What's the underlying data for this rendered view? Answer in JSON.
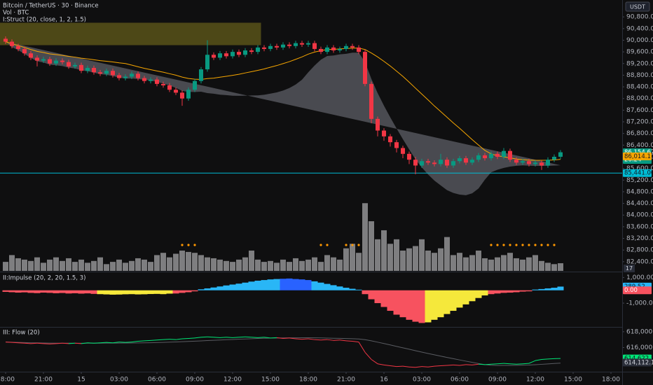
{
  "chart_data": [
    {
      "type": "candlestick",
      "title": "Bitcoin / TetherUS · 30 · Binance",
      "indicator": "I:Struct (20, close, 1, 2, 1.5)",
      "currency": "USDT",
      "up_color": "#089981",
      "down_color": "#f23645",
      "band_color": "#5d5f66",
      "ma_color": "#f7a600",
      "ohlc": [
        [
          90050,
          90130,
          89870,
          89950
        ],
        [
          89950,
          90030,
          89720,
          89800
        ],
        [
          89800,
          89880,
          89620,
          89700
        ],
        [
          89700,
          89780,
          89470,
          89550
        ],
        [
          89550,
          89630,
          89320,
          89400
        ],
        [
          89400,
          89480,
          89100,
          89300
        ],
        [
          89300,
          89430,
          89220,
          89350
        ],
        [
          89350,
          89430,
          89120,
          89200
        ],
        [
          89200,
          89380,
          89120,
          89300
        ],
        [
          89300,
          89380,
          89170,
          89250
        ],
        [
          89250,
          89330,
          89020,
          89100
        ],
        [
          89100,
          89230,
          89020,
          89150
        ],
        [
          89150,
          89230,
          88870,
          88950
        ],
        [
          88950,
          89130,
          88870,
          89050
        ],
        [
          89050,
          89130,
          88820,
          88900
        ],
        [
          88900,
          88980,
          88770,
          88850
        ],
        [
          88850,
          89030,
          88770,
          88950
        ],
        [
          88950,
          89030,
          88720,
          88800
        ],
        [
          88800,
          88880,
          88620,
          88700
        ],
        [
          88700,
          88830,
          88620,
          88750
        ],
        [
          88750,
          88930,
          88670,
          88850
        ],
        [
          88850,
          88930,
          88620,
          88700
        ],
        [
          88700,
          88780,
          88520,
          88600
        ],
        [
          88600,
          88730,
          88520,
          88650
        ],
        [
          88650,
          88730,
          88420,
          88500
        ],
        [
          88500,
          88580,
          88370,
          88450
        ],
        [
          88450,
          88530,
          88220,
          88300
        ],
        [
          88300,
          88380,
          88120,
          88200
        ],
        [
          88200,
          88280,
          87750,
          88000
        ],
        [
          88000,
          88380,
          87920,
          88300
        ],
        [
          88300,
          88680,
          88220,
          88600
        ],
        [
          88600,
          89080,
          88520,
          89000
        ],
        [
          89000,
          90000,
          88920,
          89500
        ],
        [
          89500,
          89580,
          89320,
          89400
        ],
        [
          89400,
          89630,
          89320,
          89550
        ],
        [
          89550,
          89630,
          89370,
          89450
        ],
        [
          89450,
          89680,
          89370,
          89600
        ],
        [
          89600,
          89680,
          89420,
          89500
        ],
        [
          89500,
          89730,
          89420,
          89650
        ],
        [
          89650,
          89730,
          89520,
          89600
        ],
        [
          89600,
          89830,
          89520,
          89750
        ],
        [
          89750,
          89830,
          89620,
          89700
        ],
        [
          89700,
          89880,
          89620,
          89800
        ],
        [
          89800,
          89880,
          89670,
          89750
        ],
        [
          89750,
          89930,
          89670,
          89850
        ],
        [
          89850,
          89930,
          89720,
          89800
        ],
        [
          89800,
          89980,
          89720,
          89900
        ],
        [
          89900,
          89980,
          89770,
          89850
        ],
        [
          89850,
          89980,
          89770,
          89900
        ],
        [
          89900,
          89980,
          89620,
          89700
        ],
        [
          89700,
          89780,
          89520,
          89600
        ],
        [
          89600,
          89830,
          89520,
          89750
        ],
        [
          89750,
          89830,
          89570,
          89650
        ],
        [
          89650,
          89780,
          89570,
          89700
        ],
        [
          89700,
          89880,
          89620,
          89800
        ],
        [
          89800,
          89880,
          89670,
          89750
        ],
        [
          89750,
          89830,
          89520,
          89600
        ],
        [
          89600,
          89680,
          88420,
          88500
        ],
        [
          88500,
          88580,
          87150,
          87300
        ],
        [
          87300,
          87380,
          86700,
          86900
        ],
        [
          86900,
          86980,
          86550,
          86700
        ],
        [
          86700,
          86780,
          86350,
          86500
        ],
        [
          86500,
          86580,
          86150,
          86300
        ],
        [
          86300,
          86380,
          85950,
          86100
        ],
        [
          86100,
          86180,
          85750,
          85900
        ],
        [
          85900,
          86000,
          85400,
          85700
        ],
        [
          85700,
          85930,
          85620,
          85850
        ],
        [
          85850,
          85930,
          85720,
          85800
        ],
        [
          85800,
          85880,
          85670,
          85750
        ],
        [
          85750,
          86100,
          85670,
          85900
        ],
        [
          85900,
          85980,
          85620,
          85700
        ],
        [
          85700,
          85930,
          85620,
          85850
        ],
        [
          85850,
          86030,
          85770,
          85950
        ],
        [
          85950,
          86030,
          85720,
          85800
        ],
        [
          85800,
          85980,
          85720,
          85900
        ],
        [
          85900,
          86130,
          85820,
          86050
        ],
        [
          86050,
          86130,
          85870,
          85950
        ],
        [
          85950,
          86180,
          85870,
          86100
        ],
        [
          86100,
          86180,
          85920,
          86000
        ],
        [
          86000,
          86300,
          85920,
          86200
        ],
        [
          86200,
          86280,
          85820,
          85900
        ],
        [
          85900,
          85980,
          85720,
          85800
        ],
        [
          85800,
          85930,
          85720,
          85850
        ],
        [
          85850,
          85930,
          85670,
          85750
        ],
        [
          85750,
          85880,
          85670,
          85800
        ],
        [
          85800,
          85880,
          85550,
          85700
        ],
        [
          85700,
          85980,
          85620,
          85900
        ],
        [
          85900,
          86080,
          85820,
          86000
        ],
        [
          86000,
          86230,
          85920,
          86154.67
        ]
      ],
      "ylim": [
        82060,
        91380
      ],
      "yticks": [
        {
          "value": 90800,
          "label": "90,800.00"
        },
        {
          "value": 90400,
          "label": "90,400.00"
        },
        {
          "value": 90000,
          "label": "90,000.00"
        },
        {
          "value": 89600,
          "label": "89,600.00"
        },
        {
          "value": 89200,
          "label": "89,200.00"
        },
        {
          "value": 88800,
          "label": "88,800.00"
        },
        {
          "value": 88400,
          "label": "88,400.00"
        },
        {
          "value": 88000,
          "label": "88,000.00"
        },
        {
          "value": 87600,
          "label": "87,600.00"
        },
        {
          "value": 87200,
          "label": "87,200.00"
        },
        {
          "value": 86800,
          "label": "86,800.00"
        },
        {
          "value": 86400,
          "label": "86,400.00"
        },
        {
          "value": 86000,
          "label": "86,000.00"
        },
        {
          "value": 85600,
          "label": "85,600.00"
        },
        {
          "value": 85200,
          "label": "85,200.00"
        },
        {
          "value": 84800,
          "label": "84,800.00"
        },
        {
          "value": 84400,
          "label": "84,400.00"
        },
        {
          "value": 84000,
          "label": "84,000.00"
        },
        {
          "value": 83600,
          "label": "83,600.00"
        },
        {
          "value": 83200,
          "label": "83,200.00"
        },
        {
          "value": 82800,
          "label": "82,800.00"
        },
        {
          "value": 82400,
          "label": "82,400.00"
        }
      ],
      "xticks": [
        {
          "value": 0,
          "label": "18:00"
        },
        {
          "value": 6,
          "label": "21:00"
        },
        {
          "value": 12,
          "label": "15"
        },
        {
          "value": 18,
          "label": "03:00"
        },
        {
          "value": 24,
          "label": "06:00"
        },
        {
          "value": 30,
          "label": "09:00"
        },
        {
          "value": 36,
          "label": "12:00"
        },
        {
          "value": 42,
          "label": "15:00"
        },
        {
          "value": 48,
          "label": "18:00"
        },
        {
          "value": 54,
          "label": "21:00"
        },
        {
          "value": 60,
          "label": "16"
        },
        {
          "value": 66,
          "label": "03:00"
        },
        {
          "value": 72,
          "label": "06:00"
        },
        {
          "value": 78,
          "label": "09:00"
        },
        {
          "value": 84,
          "label": "12:00"
        },
        {
          "value": 90,
          "label": "15:00"
        },
        {
          "value": 96,
          "label": "18:00"
        }
      ],
      "zone": {
        "xlim": [
          -1,
          40.5
        ],
        "ylim": [
          89830,
          90600
        ],
        "color": "rgba(130,120,30,0.55)"
      },
      "last_price": {
        "value": 86154.67,
        "label": "86,154.67"
      },
      "countdown": "26:24",
      "ma_badge": {
        "value": 86014.17,
        "label": "86,014.17"
      },
      "hline": {
        "value": 85441,
        "label": "85,441.00",
        "color": "#00bcd4"
      }
    },
    {
      "type": "bar",
      "title": "Vol · BTC",
      "color": "#7e7e80",
      "values": [
        20,
        35,
        28,
        25,
        22,
        30,
        18,
        25,
        30,
        22,
        28,
        20,
        25,
        18,
        22,
        30,
        15,
        20,
        25,
        18,
        22,
        28,
        25,
        20,
        35,
        40,
        30,
        38,
        45,
        42,
        40,
        35,
        30,
        28,
        25,
        22,
        20,
        25,
        30,
        45,
        25,
        20,
        22,
        18,
        25,
        20,
        28,
        22,
        25,
        30,
        20,
        35,
        30,
        25,
        50,
        60,
        40,
        150,
        110,
        70,
        90,
        60,
        70,
        45,
        50,
        55,
        70,
        45,
        40,
        50,
        75,
        35,
        40,
        30,
        35,
        45,
        28,
        25,
        30,
        35,
        40,
        28,
        25,
        30,
        35,
        22,
        18,
        15,
        17
      ],
      "ylim": [
        0,
        600
      ],
      "signals": [
        28,
        29,
        30,
        50,
        51,
        54,
        55,
        56,
        77,
        78,
        79,
        80,
        81,
        82,
        83,
        84,
        85,
        86,
        87
      ],
      "signal_color": "#ff9800"
    },
    {
      "type": "histogram",
      "title": "II:Impulse (20, 2, 20, 1.5, 3)",
      "values": [
        -120,
        -150,
        -180,
        -160,
        -200,
        -220,
        -180,
        -200,
        -230,
        -210,
        -250,
        -230,
        -260,
        -240,
        -280,
        -300,
        -320,
        -340,
        -330,
        -310,
        -300,
        -320,
        -310,
        -290,
        -280,
        -300,
        -260,
        -250,
        -200,
        -150,
        -80,
        80,
        150,
        220,
        300,
        380,
        450,
        520,
        600,
        680,
        750,
        800,
        850,
        880,
        900,
        920,
        880,
        850,
        800,
        700,
        600,
        500,
        400,
        300,
        200,
        120,
        50,
        -300,
        -700,
        -1000,
        -1300,
        -1600,
        -1900,
        -2100,
        -2300,
        -2450,
        -2550,
        -2500,
        -2300,
        -2100,
        -1850,
        -1600,
        -1350,
        -1100,
        -850,
        -600,
        -400,
        -300,
        -250,
        -200,
        -180,
        -150,
        -100,
        -80,
        60,
        100,
        150,
        200,
        289.52
      ],
      "colors": [
        "#f7525f",
        "#f7525f",
        "#f7525f",
        "#f7525f",
        "#f7525f",
        "#f7525f",
        "#f7525f",
        "#f7525f",
        "#f7525f",
        "#f7525f",
        "#f7525f",
        "#f7525f",
        "#f7525f",
        "#f7525f",
        "#f7525f",
        "#f5e83b",
        "#f5e83b",
        "#f5e83b",
        "#f5e83b",
        "#f5e83b",
        "#f5e83b",
        "#f5e83b",
        "#f5e83b",
        "#f5e83b",
        "#f5e83b",
        "#f5e83b",
        "#f5e83b",
        "#f7525f",
        "#f7525f",
        "#f7525f",
        "#f7525f",
        "#29b6f6",
        "#29b6f6",
        "#29b6f6",
        "#29b6f6",
        "#29b6f6",
        "#29b6f6",
        "#29b6f6",
        "#29b6f6",
        "#29b6f6",
        "#29b6f6",
        "#29b6f6",
        "#29b6f6",
        "#29b6f6",
        "#2962ff",
        "#2962ff",
        "#2962ff",
        "#2962ff",
        "#2962ff",
        "#29b6f6",
        "#29b6f6",
        "#29b6f6",
        "#29b6f6",
        "#29b6f6",
        "#29b6f6",
        "#29b6f6",
        "#29b6f6",
        "#f7525f",
        "#f7525f",
        "#f7525f",
        "#f7525f",
        "#f7525f",
        "#f7525f",
        "#f7525f",
        "#f7525f",
        "#f7525f",
        "#f7525f",
        "#f5e83b",
        "#f5e83b",
        "#f5e83b",
        "#f5e83b",
        "#f5e83b",
        "#f5e83b",
        "#f5e83b",
        "#f5e83b",
        "#f5e83b",
        "#f5e83b",
        "#f7525f",
        "#f7525f",
        "#f7525f",
        "#f7525f",
        "#f7525f",
        "#f7525f",
        "#f7525f",
        "#29b6f6",
        "#29b6f6",
        "#29b6f6",
        "#29b6f6",
        "#29b6f6"
      ],
      "ylim": [
        -2800,
        1350
      ],
      "yticks": [
        {
          "value": 1000,
          "label": "1,000.00"
        },
        {
          "value": -1000,
          "label": "-1,000.00"
        }
      ],
      "zero_badge": {
        "value": 0,
        "label": "0.00"
      }
    },
    {
      "type": "line",
      "title": "III: Flow (20)",
      "up_color": "#00e676",
      "down_color": "#f23645",
      "signal_color": "#5a5c62",
      "values": [
        616700,
        616650,
        616600,
        616550,
        616500,
        616550,
        616500,
        616450,
        616500,
        616550,
        616500,
        616550,
        616500,
        616600,
        616550,
        616600,
        616650,
        616600,
        616700,
        616650,
        616700,
        616800,
        616850,
        616900,
        616950,
        617000,
        617050,
        617000,
        617100,
        617150,
        617200,
        617300,
        617350,
        617300,
        617250,
        617300,
        617250,
        617300,
        617350,
        617300,
        617250,
        617300,
        617200,
        617250,
        617150,
        617200,
        617100,
        617050,
        617100,
        617000,
        616950,
        617000,
        616900,
        616950,
        616850,
        616800,
        616700,
        615400,
        614500,
        613950,
        613800,
        613700,
        613600,
        613650,
        613550,
        613500,
        613600,
        613550,
        613650,
        613700,
        613750,
        613800,
        613750,
        613850,
        613800,
        613900,
        613850,
        613900,
        613950,
        614000,
        613950,
        613900,
        613950,
        614000,
        614350,
        614500,
        614550,
        614600,
        614622.57
      ],
      "ylim": [
        613040,
        618430
      ],
      "yticks": [
        {
          "value": 618000,
          "label": "618,000.00"
        },
        {
          "value": 616000,
          "label": "616,000.00"
        }
      ],
      "last_badge": {
        "value": 614622.57,
        "label": "614,622.57"
      },
      "signal_badge": {
        "value": 614112.1,
        "label": "614,112.10"
      }
    }
  ]
}
